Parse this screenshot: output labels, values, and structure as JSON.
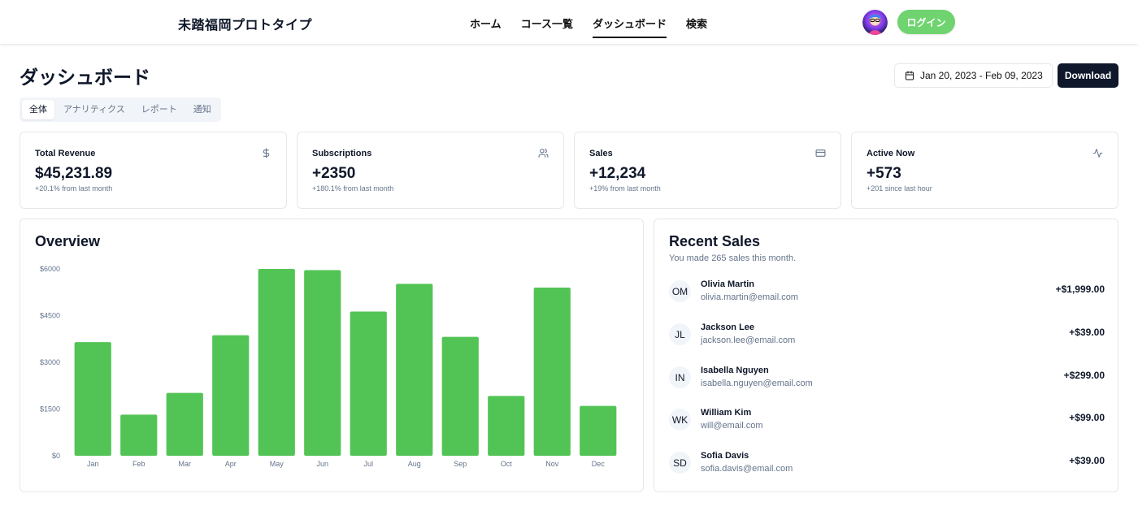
{
  "header": {
    "brand": "未踏福岡プロトタイプ",
    "nav": [
      {
        "label": "ホーム",
        "active": false
      },
      {
        "label": "コース一覧",
        "active": false
      },
      {
        "label": "ダッシュボード",
        "active": true
      },
      {
        "label": "検索",
        "active": false
      }
    ],
    "login_label": "ログイン",
    "accent_color": "#6fd46f"
  },
  "page": {
    "title": "ダッシュボード",
    "date_range": "Jan 20, 2023 - Feb 09, 2023",
    "download_label": "Download"
  },
  "tabs": [
    {
      "label": "全体",
      "active": true
    },
    {
      "label": "アナリティクス",
      "active": false
    },
    {
      "label": "レポート",
      "active": false
    },
    {
      "label": "通知",
      "active": false
    }
  ],
  "stats": [
    {
      "label": "Total Revenue",
      "value": "$45,231.89",
      "sub": "+20.1% from last month",
      "icon": "dollar-icon"
    },
    {
      "label": "Subscriptions",
      "value": "+2350",
      "sub": "+180.1% from last month",
      "icon": "users-icon"
    },
    {
      "label": "Sales",
      "value": "+12,234",
      "sub": "+19% from last month",
      "icon": "credit-card-icon"
    },
    {
      "label": "Active Now",
      "value": "+573",
      "sub": "+201 since last hour",
      "icon": "activity-icon"
    }
  ],
  "overview": {
    "title": "Overview"
  },
  "chart_data": {
    "type": "bar",
    "categories": [
      "Jan",
      "Feb",
      "Mar",
      "Apr",
      "May",
      "Jun",
      "Jul",
      "Aug",
      "Sep",
      "Oct",
      "Nov",
      "Dec"
    ],
    "values": [
      3650,
      1320,
      2020,
      3870,
      6000,
      5960,
      4630,
      5520,
      3820,
      1920,
      5400,
      1600
    ],
    "yticks": [
      "$0",
      "$1500",
      "$3000",
      "$4500",
      "$6000"
    ],
    "ylim": [
      0,
      6000
    ],
    "bar_color": "#52c455",
    "grid": false
  },
  "recent_sales": {
    "title": "Recent Sales",
    "subtitle": "You made 265 sales this month.",
    "items": [
      {
        "initials": "OM",
        "name": "Olivia Martin",
        "email": "olivia.martin@email.com",
        "amount": "+$1,999.00"
      },
      {
        "initials": "JL",
        "name": "Jackson Lee",
        "email": "jackson.lee@email.com",
        "amount": "+$39.00"
      },
      {
        "initials": "IN",
        "name": "Isabella Nguyen",
        "email": "isabella.nguyen@email.com",
        "amount": "+$299.00"
      },
      {
        "initials": "WK",
        "name": "William Kim",
        "email": "will@email.com",
        "amount": "+$99.00"
      },
      {
        "initials": "SD",
        "name": "Sofia Davis",
        "email": "sofia.davis@email.com",
        "amount": "+$39.00"
      }
    ]
  }
}
